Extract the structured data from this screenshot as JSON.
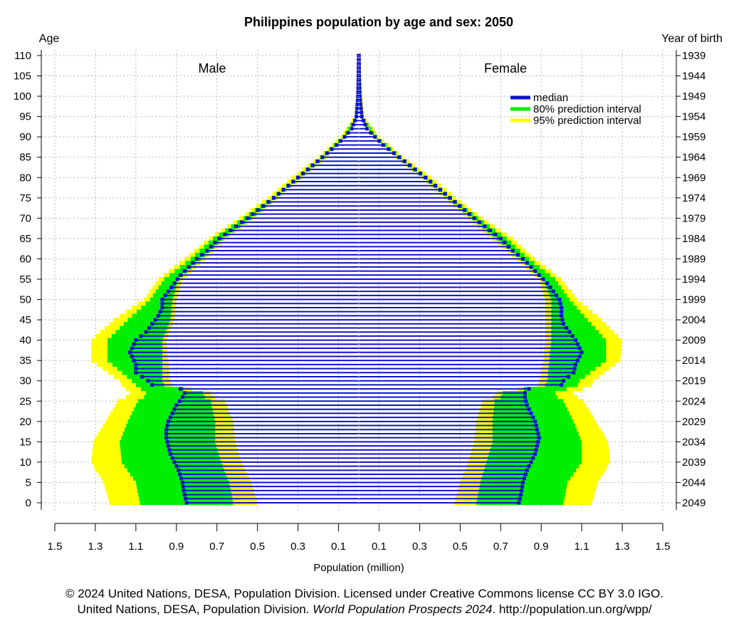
{
  "chart_data": {
    "type": "population-pyramid",
    "title": "Philippines population by age and sex: 2050",
    "left_axis_label": "Age",
    "right_axis_label": "Year of birth",
    "xlabel": "Population (million)",
    "male_label": "Male",
    "female_label": "Female",
    "xlim": [
      -1.5,
      1.5
    ],
    "ylim": [
      0,
      110
    ],
    "x_ticks": [
      -1.5,
      -1.3,
      -1.1,
      -0.9,
      -0.7,
      -0.5,
      -0.3,
      -0.1,
      0.1,
      0.3,
      0.5,
      0.7,
      0.9,
      1.1,
      1.3,
      1.5
    ],
    "x_tick_labels": [
      "1.5",
      "1.3",
      "1.1",
      "0.9",
      "0.7",
      "0.5",
      "0.3",
      "0.1",
      "0.1",
      "0.3",
      "0.5",
      "0.7",
      "0.9",
      "1.1",
      "1.3",
      "1.5"
    ],
    "age_ticks": [
      0,
      5,
      10,
      15,
      20,
      25,
      30,
      35,
      40,
      45,
      50,
      55,
      60,
      65,
      70,
      75,
      80,
      85,
      90,
      95,
      100,
      105,
      110
    ],
    "year_of_birth_ticks": [
      {
        "age": 0,
        "label": "2049"
      },
      {
        "age": 5,
        "label": "2044"
      },
      {
        "age": 10,
        "label": "2039"
      },
      {
        "age": 15,
        "label": "2034"
      },
      {
        "age": 20,
        "label": "2029"
      },
      {
        "age": 25,
        "label": "2024"
      },
      {
        "age": 30,
        "label": "2019"
      },
      {
        "age": 35,
        "label": "2014"
      },
      {
        "age": 40,
        "label": "2009"
      },
      {
        "age": 45,
        "label": "2004"
      },
      {
        "age": 50,
        "label": "1999"
      },
      {
        "age": 55,
        "label": "1994"
      },
      {
        "age": 60,
        "label": "1989"
      },
      {
        "age": 65,
        "label": "1984"
      },
      {
        "age": 70,
        "label": "1979"
      },
      {
        "age": 75,
        "label": "1974"
      },
      {
        "age": 80,
        "label": "1969"
      },
      {
        "age": 85,
        "label": "1964"
      },
      {
        "age": 90,
        "label": "1959"
      },
      {
        "age": 95,
        "label": "1954"
      },
      {
        "age": 100,
        "label": "1949"
      },
      {
        "age": 105,
        "label": "1944"
      },
      {
        "age": 110,
        "label": "1939"
      }
    ],
    "grid": true,
    "legend_position": "top-right",
    "legend": [
      {
        "label": "median",
        "color": "#1010d0"
      },
      {
        "label": "80% prediction interval",
        "color": "#00ee00"
      },
      {
        "label": "95% prediction interval",
        "color": "#ffff00"
      }
    ],
    "colors": {
      "median": "#1010d0",
      "pi80": "#00ee00",
      "pi95": "#ffff00",
      "grid": "#b8b8b8",
      "center_line": "#000000"
    },
    "series_description": "Per single-year age group (0-110): median population in millions plus lower/upper bounds of the 80% and 95% prediction intervals, for males and females",
    "male_median": {
      "ages": [
        0,
        2,
        5,
        8,
        10,
        12,
        14,
        16,
        18,
        20,
        22,
        24,
        26,
        27,
        28,
        29,
        30,
        32,
        34,
        36,
        37,
        38,
        40,
        42,
        44,
        46,
        48,
        50,
        52,
        54,
        56,
        58,
        60,
        62,
        65,
        70,
        75,
        80,
        85,
        88,
        90,
        92,
        95,
        100,
        105,
        110
      ],
      "values": [
        0.85,
        0.86,
        0.87,
        0.89,
        0.91,
        0.93,
        0.94,
        0.95,
        0.95,
        0.94,
        0.92,
        0.9,
        0.87,
        0.86,
        0.88,
        1.02,
        1.04,
        1.1,
        1.1,
        1.12,
        1.13,
        1.12,
        1.1,
        1.05,
        1.02,
        0.99,
        0.97,
        0.97,
        0.94,
        0.91,
        0.88,
        0.84,
        0.8,
        0.75,
        0.69,
        0.55,
        0.42,
        0.3,
        0.18,
        0.11,
        0.07,
        0.035,
        0.012,
        0.004,
        0.002,
        0.001
      ]
    },
    "female_median": {
      "ages": [
        0,
        2,
        5,
        8,
        10,
        12,
        14,
        16,
        18,
        20,
        22,
        24,
        26,
        27,
        28,
        29,
        30,
        32,
        34,
        36,
        37,
        38,
        40,
        42,
        44,
        46,
        48,
        50,
        52,
        54,
        56,
        58,
        60,
        62,
        65,
        70,
        75,
        80,
        85,
        88,
        90,
        92,
        95,
        100,
        105,
        110
      ],
      "values": [
        0.79,
        0.8,
        0.81,
        0.83,
        0.85,
        0.87,
        0.88,
        0.89,
        0.88,
        0.87,
        0.85,
        0.83,
        0.82,
        0.82,
        0.84,
        1.0,
        1.01,
        1.06,
        1.07,
        1.09,
        1.1,
        1.09,
        1.07,
        1.04,
        1.01,
        1.0,
        1.0,
        0.99,
        0.96,
        0.93,
        0.89,
        0.85,
        0.81,
        0.76,
        0.7,
        0.57,
        0.45,
        0.33,
        0.2,
        0.12,
        0.08,
        0.04,
        0.015,
        0.005,
        0.002,
        0.001
      ]
    },
    "male_pi80": {
      "ages": [
        0,
        5,
        10,
        15,
        20,
        25,
        26,
        27,
        29,
        30,
        35,
        40,
        45,
        50,
        55,
        60,
        65,
        70,
        75,
        80,
        85,
        90,
        95,
        110
      ],
      "low": [
        0.62,
        0.64,
        0.68,
        0.71,
        0.71,
        0.73,
        0.76,
        0.77,
        0.96,
        0.97,
        0.97,
        0.97,
        0.93,
        0.92,
        0.89,
        0.78,
        0.67,
        0.53,
        0.41,
        0.29,
        0.17,
        0.07,
        0.01,
        0.001
      ],
      "high": [
        1.08,
        1.1,
        1.17,
        1.18,
        1.14,
        1.09,
        1.06,
        1.05,
        1.1,
        1.12,
        1.24,
        1.24,
        1.14,
        1.03,
        0.96,
        0.83,
        0.72,
        0.57,
        0.43,
        0.31,
        0.19,
        0.08,
        0.015,
        0.001
      ]
    },
    "female_pi80": {
      "ages": [
        0,
        5,
        10,
        15,
        20,
        25,
        26,
        27,
        29,
        30,
        35,
        40,
        45,
        50,
        55,
        60,
        65,
        70,
        75,
        80,
        85,
        90,
        95,
        110
      ],
      "low": [
        0.58,
        0.6,
        0.63,
        0.66,
        0.66,
        0.67,
        0.7,
        0.71,
        0.92,
        0.93,
        0.94,
        0.95,
        0.95,
        0.95,
        0.91,
        0.8,
        0.68,
        0.56,
        0.44,
        0.32,
        0.19,
        0.08,
        0.01,
        0.001
      ],
      "high": [
        1.01,
        1.03,
        1.1,
        1.1,
        1.06,
        1.01,
        0.98,
        0.97,
        1.08,
        1.09,
        1.22,
        1.22,
        1.13,
        1.04,
        0.97,
        0.84,
        0.73,
        0.59,
        0.46,
        0.34,
        0.21,
        0.09,
        0.02,
        0.001
      ]
    },
    "male_pi95": {
      "ages": [
        0,
        5,
        10,
        15,
        20,
        25,
        26,
        27,
        29,
        30,
        35,
        40,
        45,
        50,
        55,
        60,
        65,
        70,
        75,
        80,
        85,
        90,
        95,
        110
      ],
      "low": [
        0.5,
        0.53,
        0.58,
        0.61,
        0.62,
        0.66,
        0.71,
        0.73,
        0.92,
        0.93,
        0.94,
        0.95,
        0.91,
        0.9,
        0.87,
        0.76,
        0.66,
        0.52,
        0.4,
        0.28,
        0.16,
        0.065,
        0.01,
        0.001
      ],
      "high": [
        1.23,
        1.26,
        1.32,
        1.31,
        1.25,
        1.19,
        1.15,
        1.13,
        1.17,
        1.18,
        1.32,
        1.32,
        1.21,
        1.06,
        0.99,
        0.86,
        0.74,
        0.59,
        0.45,
        0.33,
        0.2,
        0.09,
        0.02,
        0.001
      ]
    },
    "female_pi95": {
      "ages": [
        0,
        5,
        10,
        15,
        20,
        25,
        26,
        27,
        29,
        30,
        35,
        40,
        45,
        50,
        55,
        60,
        65,
        70,
        75,
        80,
        85,
        90,
        95,
        110
      ],
      "low": [
        0.47,
        0.5,
        0.54,
        0.57,
        0.58,
        0.61,
        0.66,
        0.68,
        0.88,
        0.89,
        0.91,
        0.92,
        0.92,
        0.92,
        0.89,
        0.78,
        0.66,
        0.54,
        0.42,
        0.31,
        0.18,
        0.075,
        0.01,
        0.001
      ],
      "high": [
        1.15,
        1.18,
        1.24,
        1.23,
        1.17,
        1.11,
        1.08,
        1.06,
        1.15,
        1.16,
        1.29,
        1.3,
        1.2,
        1.08,
        1.0,
        0.87,
        0.76,
        0.61,
        0.48,
        0.36,
        0.22,
        0.1,
        0.025,
        0.001
      ]
    }
  },
  "credit": {
    "line1": "© 2024 United Nations, DESA, Population Division. Licensed under Creative Commons license CC BY 3.0 IGO.",
    "line2_prefix": "United Nations, DESA, Population Division. ",
    "line2_italic": "World Population Prospects 2024",
    "line2_suffix": ". http://population.un.org/wpp/"
  }
}
